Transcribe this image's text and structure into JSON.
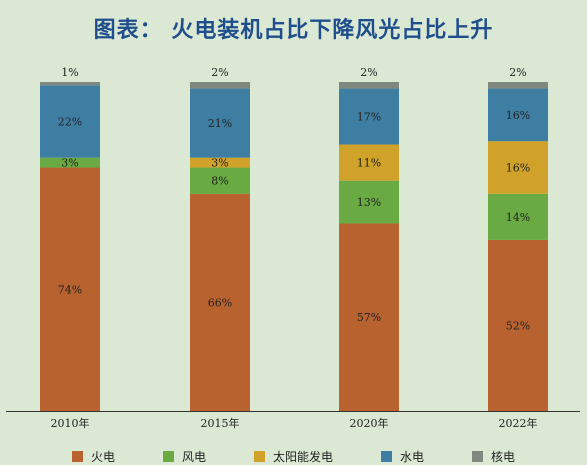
{
  "title": "图表： 火电装机占比下降风光占比上升",
  "chart_data": {
    "type": "bar",
    "stacked": true,
    "categories": [
      "2010年",
      "2015年",
      "2020年",
      "2022年"
    ],
    "series": [
      {
        "name": "火电",
        "color": "#b8632f",
        "values": [
          74,
          66,
          57,
          52
        ],
        "labels": [
          "74%",
          "66%",
          "57%",
          "52%"
        ]
      },
      {
        "name": "风电",
        "color": "#6aaa42",
        "values": [
          3,
          8,
          13,
          14
        ],
        "labels": [
          "3%",
          "8%",
          "13%",
          "14%"
        ]
      },
      {
        "name": "太阳能发电",
        "color": "#d0a22a",
        "values": [
          0,
          3,
          11,
          16
        ],
        "labels": [
          "",
          "3%",
          "11%",
          "16%"
        ]
      },
      {
        "name": "水电",
        "color": "#3f7ea3",
        "values": [
          22,
          21,
          17,
          16
        ],
        "labels": [
          "22%",
          "21%",
          "17%",
          "16%"
        ]
      },
      {
        "name": "核电",
        "color": "#7f877f",
        "values": [
          1,
          2,
          2,
          2
        ],
        "labels": [
          "1%",
          "2%",
          "2%",
          "2%"
        ]
      }
    ],
    "ylim": [
      0,
      100
    ],
    "grid": false,
    "legend_position": "bottom"
  }
}
